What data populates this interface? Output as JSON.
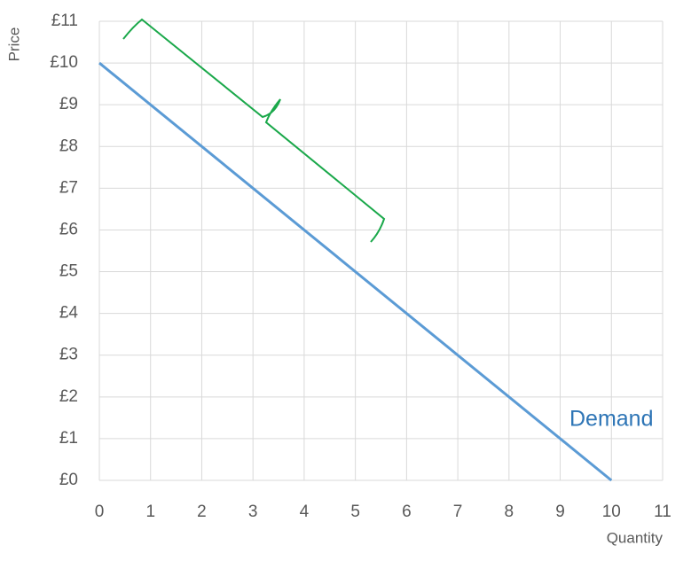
{
  "chart_data": {
    "type": "line",
    "x_label": "Quantity",
    "y_label": "Price",
    "series": [
      {
        "name": "Demand",
        "color": "#5b9bd5",
        "label_color": "#2e75b6",
        "x": [
          0,
          10
        ],
        "values": [
          10,
          0
        ]
      }
    ],
    "xlim": [
      0,
      11
    ],
    "xticks": [
      0,
      1,
      2,
      3,
      4,
      5,
      6,
      7,
      8,
      9,
      10,
      11
    ],
    "ylim": [
      0,
      11
    ],
    "yticks": [
      {
        "value": 0,
        "label": "£0"
      },
      {
        "value": 1,
        "label": "£1"
      },
      {
        "value": 2,
        "label": "£2"
      },
      {
        "value": 3,
        "label": "£3"
      },
      {
        "value": 4,
        "label": "£4"
      },
      {
        "value": 5,
        "label": "£5"
      },
      {
        "value": 6,
        "label": "£6"
      },
      {
        "value": 7,
        "label": "£7"
      },
      {
        "value": 8,
        "label": "£8"
      },
      {
        "value": 9,
        "label": "£9"
      },
      {
        "value": 10,
        "label": "£10"
      },
      {
        "value": 11,
        "label": "£11"
      }
    ],
    "grid": true
  }
}
